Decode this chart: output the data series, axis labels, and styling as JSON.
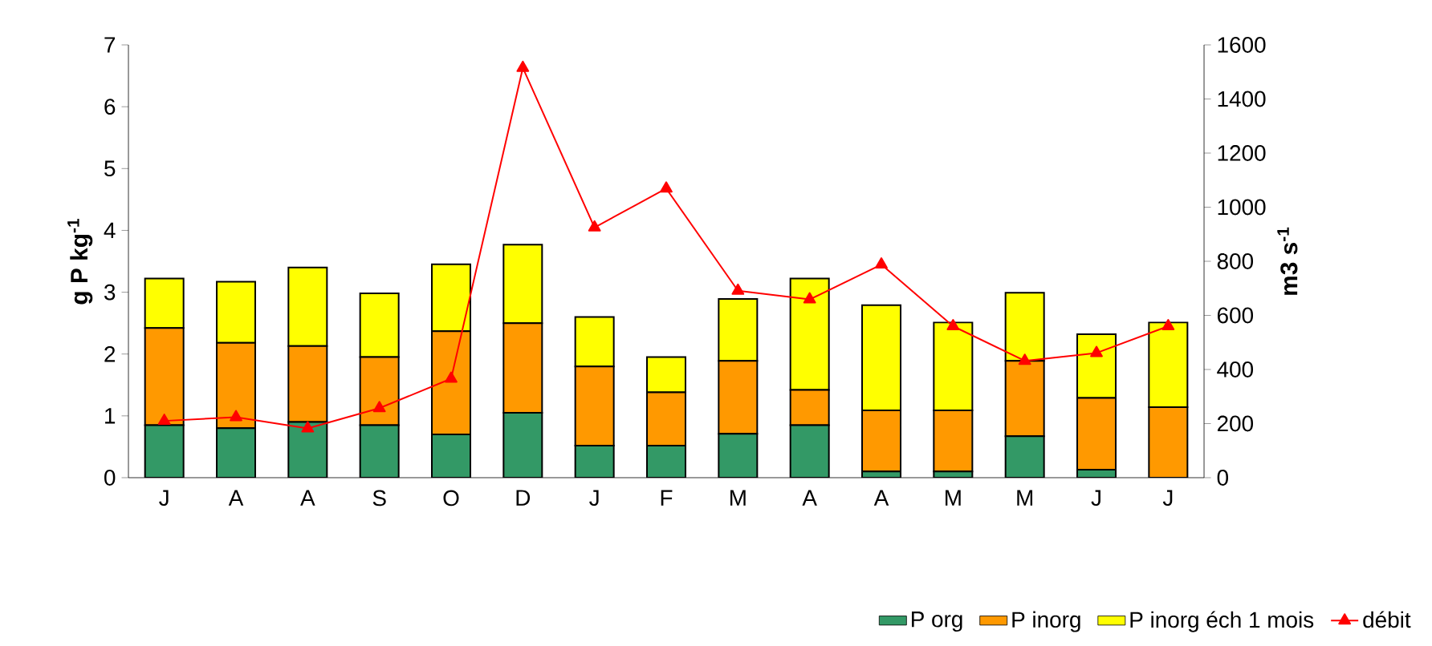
{
  "chart_data": {
    "type": "bar",
    "stacked": true,
    "ylabel": "g P kg$^{-1}$",
    "y2label": "m3 s$^{-1}$",
    "categories": [
      "J",
      "A",
      "A",
      "S",
      "O",
      "D",
      "J",
      "F",
      "M",
      "A",
      "A",
      "M",
      "M",
      "J",
      "J"
    ],
    "ylim": [
      0,
      7
    ],
    "yticks": [
      0,
      1,
      2,
      3,
      4,
      5,
      6,
      7
    ],
    "y2lim": [
      0,
      1600
    ],
    "y2ticks": [
      0,
      200,
      400,
      600,
      800,
      1000,
      1200,
      1400,
      1600
    ],
    "legend": "bottom",
    "marker": "triangle",
    "line_style": "solid",
    "series": [
      {
        "name": "P org",
        "color": "#339966",
        "values": [
          0.85,
          0.8,
          0.9,
          0.85,
          0.7,
          1.05,
          0.52,
          0.52,
          0.71,
          0.85,
          0.1,
          0.1,
          0.67,
          0.13,
          0
        ]
      },
      {
        "name": "P inorg",
        "color": "#ff9900",
        "values": [
          1.57,
          1.38,
          1.23,
          1.1,
          1.67,
          1.45,
          1.28,
          0.86,
          1.18,
          0.57,
          0.99,
          0.99,
          1.22,
          1.16,
          1.14
        ]
      },
      {
        "name": "P inorg éch 1 mois",
        "color": "#ffff00",
        "values": [
          0.8,
          0.99,
          1.27,
          1.03,
          1.08,
          1.27,
          0.8,
          0.57,
          1.0,
          1.8,
          1.7,
          1.42,
          1.1,
          1.03,
          1.37
        ]
      },
      {
        "name": "débit",
        "type": "line",
        "axis": "y2",
        "color": "#ff0000",
        "values": [
          210,
          224,
          182,
          257,
          366,
          1515,
          925,
          1069,
          691,
          659,
          788,
          560,
          432,
          461,
          560
        ]
      }
    ]
  }
}
